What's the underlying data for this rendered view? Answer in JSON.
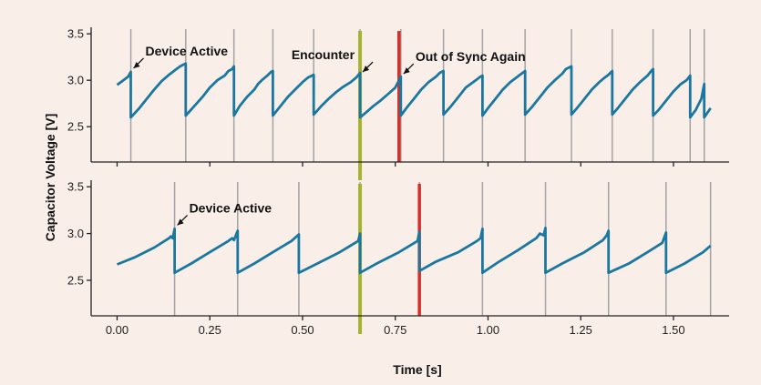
{
  "chart_data": {
    "type": "line",
    "xlabel": "Time [s]",
    "ylabel": "Capacitor Voltage [V]",
    "xlim": [
      -0.07,
      1.65
    ],
    "ylim": [
      2.12,
      3.57
    ],
    "x_ticks": [
      "0.00",
      "0.25",
      "0.50",
      "0.75",
      "1.00",
      "1.25",
      "1.50"
    ],
    "x_tick_values": [
      0.0,
      0.25,
      0.5,
      0.75,
      1.0,
      1.25,
      1.5
    ],
    "y_ticks": [
      "2.5",
      "3.0",
      "3.5"
    ],
    "y_tick_values": [
      2.5,
      3.0,
      3.5
    ],
    "colors": {
      "background": "#faeee8",
      "series": "#1a78a0",
      "activation_line": "#a3a3a3",
      "encounter_line": "#a5b330",
      "out_of_sync_line": "#d2312b",
      "axis": "#222222"
    },
    "encounter_time": 0.655,
    "panels": [
      {
        "activations": [
          0.037,
          0.185,
          0.315,
          0.42,
          0.53,
          0.655,
          0.765,
          0.88,
          0.985,
          1.1,
          1.225,
          1.335,
          1.445,
          1.545,
          1.583
        ],
        "out_of_sync_time": 0.76,
        "series": [
          {
            "x": [
              0.0,
              0.01,
              0.02,
              0.03,
              0.037,
              0.037,
              0.06,
              0.08,
              0.1,
              0.12,
              0.14,
              0.16,
              0.17,
              0.18,
              0.185,
              0.185,
              0.21,
              0.23,
              0.25,
              0.27,
              0.29,
              0.3,
              0.31,
              0.315,
              0.315,
              0.33,
              0.35,
              0.37,
              0.38,
              0.39,
              0.405,
              0.415,
              0.42,
              0.42,
              0.44,
              0.46,
              0.48,
              0.5,
              0.515,
              0.525,
              0.53,
              0.53,
              0.55,
              0.57,
              0.59,
              0.61,
              0.63,
              0.645,
              0.655,
              0.655,
              0.67,
              0.69,
              0.71,
              0.73,
              0.75,
              0.76,
              0.765,
              0.765,
              0.78,
              0.8,
              0.82,
              0.84,
              0.86,
              0.87,
              0.88,
              0.88,
              0.9,
              0.92,
              0.94,
              0.96,
              0.97,
              0.98,
              0.985,
              0.985,
              1.0,
              1.02,
              1.04,
              1.06,
              1.08,
              1.09,
              1.1,
              1.1,
              1.12,
              1.14,
              1.16,
              1.18,
              1.2,
              1.21,
              1.225,
              1.225,
              1.24,
              1.26,
              1.28,
              1.3,
              1.315,
              1.325,
              1.335,
              1.335,
              1.35,
              1.37,
              1.39,
              1.41,
              1.43,
              1.44,
              1.445,
              1.445,
              1.46,
              1.48,
              1.5,
              1.52,
              1.535,
              1.545,
              1.545,
              1.56,
              1.575,
              1.583,
              1.583,
              1.6
            ],
            "y": [
              2.95,
              2.98,
              3.01,
              3.04,
              3.09,
              2.6,
              2.7,
              2.8,
              2.9,
              2.99,
              3.06,
              3.12,
              3.15,
              3.17,
              3.18,
              2.62,
              2.73,
              2.82,
              2.92,
              3.0,
              3.05,
              3.1,
              3.12,
              3.15,
              2.62,
              2.72,
              2.82,
              2.9,
              2.96,
              3.0,
              3.05,
              3.09,
              3.1,
              2.62,
              2.72,
              2.82,
              2.9,
              2.98,
              3.03,
              3.05,
              3.06,
              2.63,
              2.72,
              2.8,
              2.87,
              2.93,
              2.98,
              3.03,
              3.08,
              2.6,
              2.65,
              2.72,
              2.78,
              2.85,
              2.92,
              3.0,
              3.04,
              2.62,
              2.7,
              2.8,
              2.9,
              2.98,
              3.04,
              3.08,
              3.1,
              2.63,
              2.72,
              2.82,
              2.92,
              2.98,
              3.01,
              3.04,
              3.05,
              2.62,
              2.7,
              2.8,
              2.9,
              2.98,
              3.04,
              3.07,
              3.1,
              2.63,
              2.72,
              2.82,
              2.92,
              3.0,
              3.07,
              3.12,
              3.15,
              2.63,
              2.7,
              2.8,
              2.9,
              2.98,
              3.03,
              3.06,
              3.1,
              2.63,
              2.7,
              2.8,
              2.9,
              2.98,
              3.05,
              3.1,
              3.12,
              2.62,
              2.68,
              2.78,
              2.88,
              2.96,
              3.0,
              3.05,
              2.6,
              2.68,
              2.8,
              2.96,
              2.6,
              2.7
            ]
          }
        ],
        "annotations": [
          {
            "text": "Device Active",
            "x": 0.037,
            "y": 3.1
          },
          {
            "text": "Encounter",
            "x": 0.655,
            "y": 3.06
          },
          {
            "text": "Out of Sync Again",
            "x": 0.765,
            "y": 3.04
          }
        ]
      },
      {
        "activations": [
          0.155,
          0.325,
          0.49,
          0.655,
          0.815,
          0.985,
          1.155,
          1.325,
          1.48,
          1.6
        ],
        "out_of_sync_time": 0.815,
        "series": [
          {
            "x": [
              0.0,
              0.05,
              0.1,
              0.14,
              0.145,
              0.15,
              0.155,
              0.155,
              0.2,
              0.25,
              0.3,
              0.31,
              0.315,
              0.325,
              0.325,
              0.37,
              0.42,
              0.47,
              0.49,
              0.49,
              0.54,
              0.6,
              0.65,
              0.655,
              0.655,
              0.7,
              0.76,
              0.81,
              0.815,
              0.815,
              0.86,
              0.92,
              0.97,
              0.98,
              0.985,
              0.985,
              1.03,
              1.08,
              1.13,
              1.14,
              1.15,
              1.155,
              1.155,
              1.2,
              1.26,
              1.31,
              1.32,
              1.325,
              1.325,
              1.38,
              1.43,
              1.47,
              1.48,
              1.48,
              1.53,
              1.58,
              1.6
            ],
            "y": [
              2.67,
              2.75,
              2.85,
              2.95,
              2.97,
              2.95,
              3.05,
              2.58,
              2.68,
              2.8,
              2.92,
              2.95,
              2.93,
              3.03,
              2.58,
              2.68,
              2.8,
              2.92,
              2.99,
              2.58,
              2.68,
              2.8,
              2.92,
              3.0,
              2.58,
              2.68,
              2.8,
              2.92,
              3.02,
              2.6,
              2.7,
              2.8,
              2.92,
              2.95,
              3.05,
              2.58,
              2.7,
              2.82,
              2.95,
              3.0,
              2.98,
              3.06,
              2.58,
              2.68,
              2.8,
              2.93,
              2.98,
              3.03,
              2.58,
              2.68,
              2.8,
              2.9,
              3.01,
              2.58,
              2.68,
              2.8,
              2.87
            ]
          }
        ],
        "annotations": [
          {
            "text": "Device Active",
            "x": 0.155,
            "y": 3.06
          }
        ]
      }
    ]
  }
}
